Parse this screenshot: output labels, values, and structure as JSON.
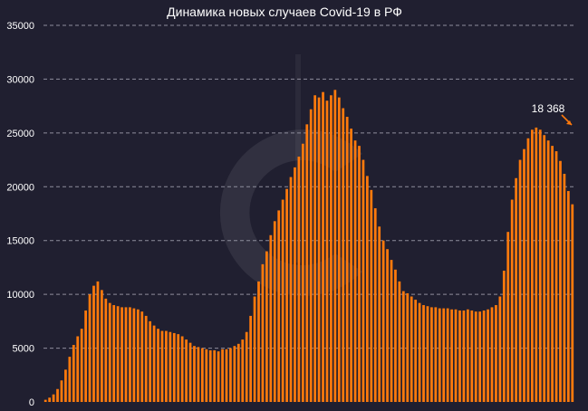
{
  "chart_data": {
    "type": "bar",
    "title": "Динамика новых случаев Covid-19 в РФ",
    "xlabel": "",
    "ylabel": "",
    "ylim": [
      0,
      35000
    ],
    "yticks": [
      {
        "value": 0,
        "label": "0"
      },
      {
        "value": 5000,
        "label": "5000"
      },
      {
        "value": 10000,
        "label": "10000"
      },
      {
        "value": 15000,
        "label": "15000"
      },
      {
        "value": 20000,
        "label": "20000"
      },
      {
        "value": 25000,
        "label": "25000"
      },
      {
        "value": 30000,
        "label": "30000"
      },
      {
        "value": 35000,
        "label": "35000"
      }
    ],
    "grid": true,
    "legend": "none",
    "bar_color": "#ff7a0c",
    "background": "#201f30",
    "annotation": {
      "text": "18 368",
      "value": 18368,
      "target": "last-bar"
    },
    "values": [
      200,
      400,
      700,
      1200,
      2000,
      3000,
      4200,
      5300,
      6100,
      6800,
      8500,
      10000,
      10800,
      11200,
      10400,
      9600,
      9200,
      9000,
      8900,
      8800,
      8800,
      8800,
      8700,
      8600,
      8400,
      8000,
      7500,
      7100,
      6800,
      6600,
      6600,
      6500,
      6400,
      6300,
      6100,
      5800,
      5500,
      5200,
      5100,
      5000,
      4900,
      4800,
      4800,
      4700,
      4900,
      4900,
      5000,
      5200,
      5400,
      5800,
      6500,
      8000,
      9800,
      11200,
      12800,
      14000,
      15500,
      16800,
      17800,
      18800,
      19800,
      20900,
      21800,
      22800,
      24000,
      25800,
      27200,
      28500,
      28300,
      28800,
      28000,
      28500,
      29000,
      28300,
      27300,
      26500,
      25400,
      24300,
      23800,
      22500,
      21000,
      19700,
      18000,
      16300,
      15000,
      14200,
      13200,
      12300,
      11200,
      10300,
      10100,
      9800,
      9500,
      9200,
      9000,
      8900,
      8800,
      8800,
      8700,
      8700,
      8700,
      8600,
      8600,
      8500,
      8500,
      8600,
      8500,
      8400,
      8400,
      8500,
      8600,
      8800,
      9000,
      9800,
      12200,
      15800,
      18800,
      20800,
      22500,
      23500,
      24500,
      25300,
      25500,
      25300,
      24800,
      24300,
      23800,
      23300,
      22400,
      21200,
      19600,
      18368
    ]
  }
}
